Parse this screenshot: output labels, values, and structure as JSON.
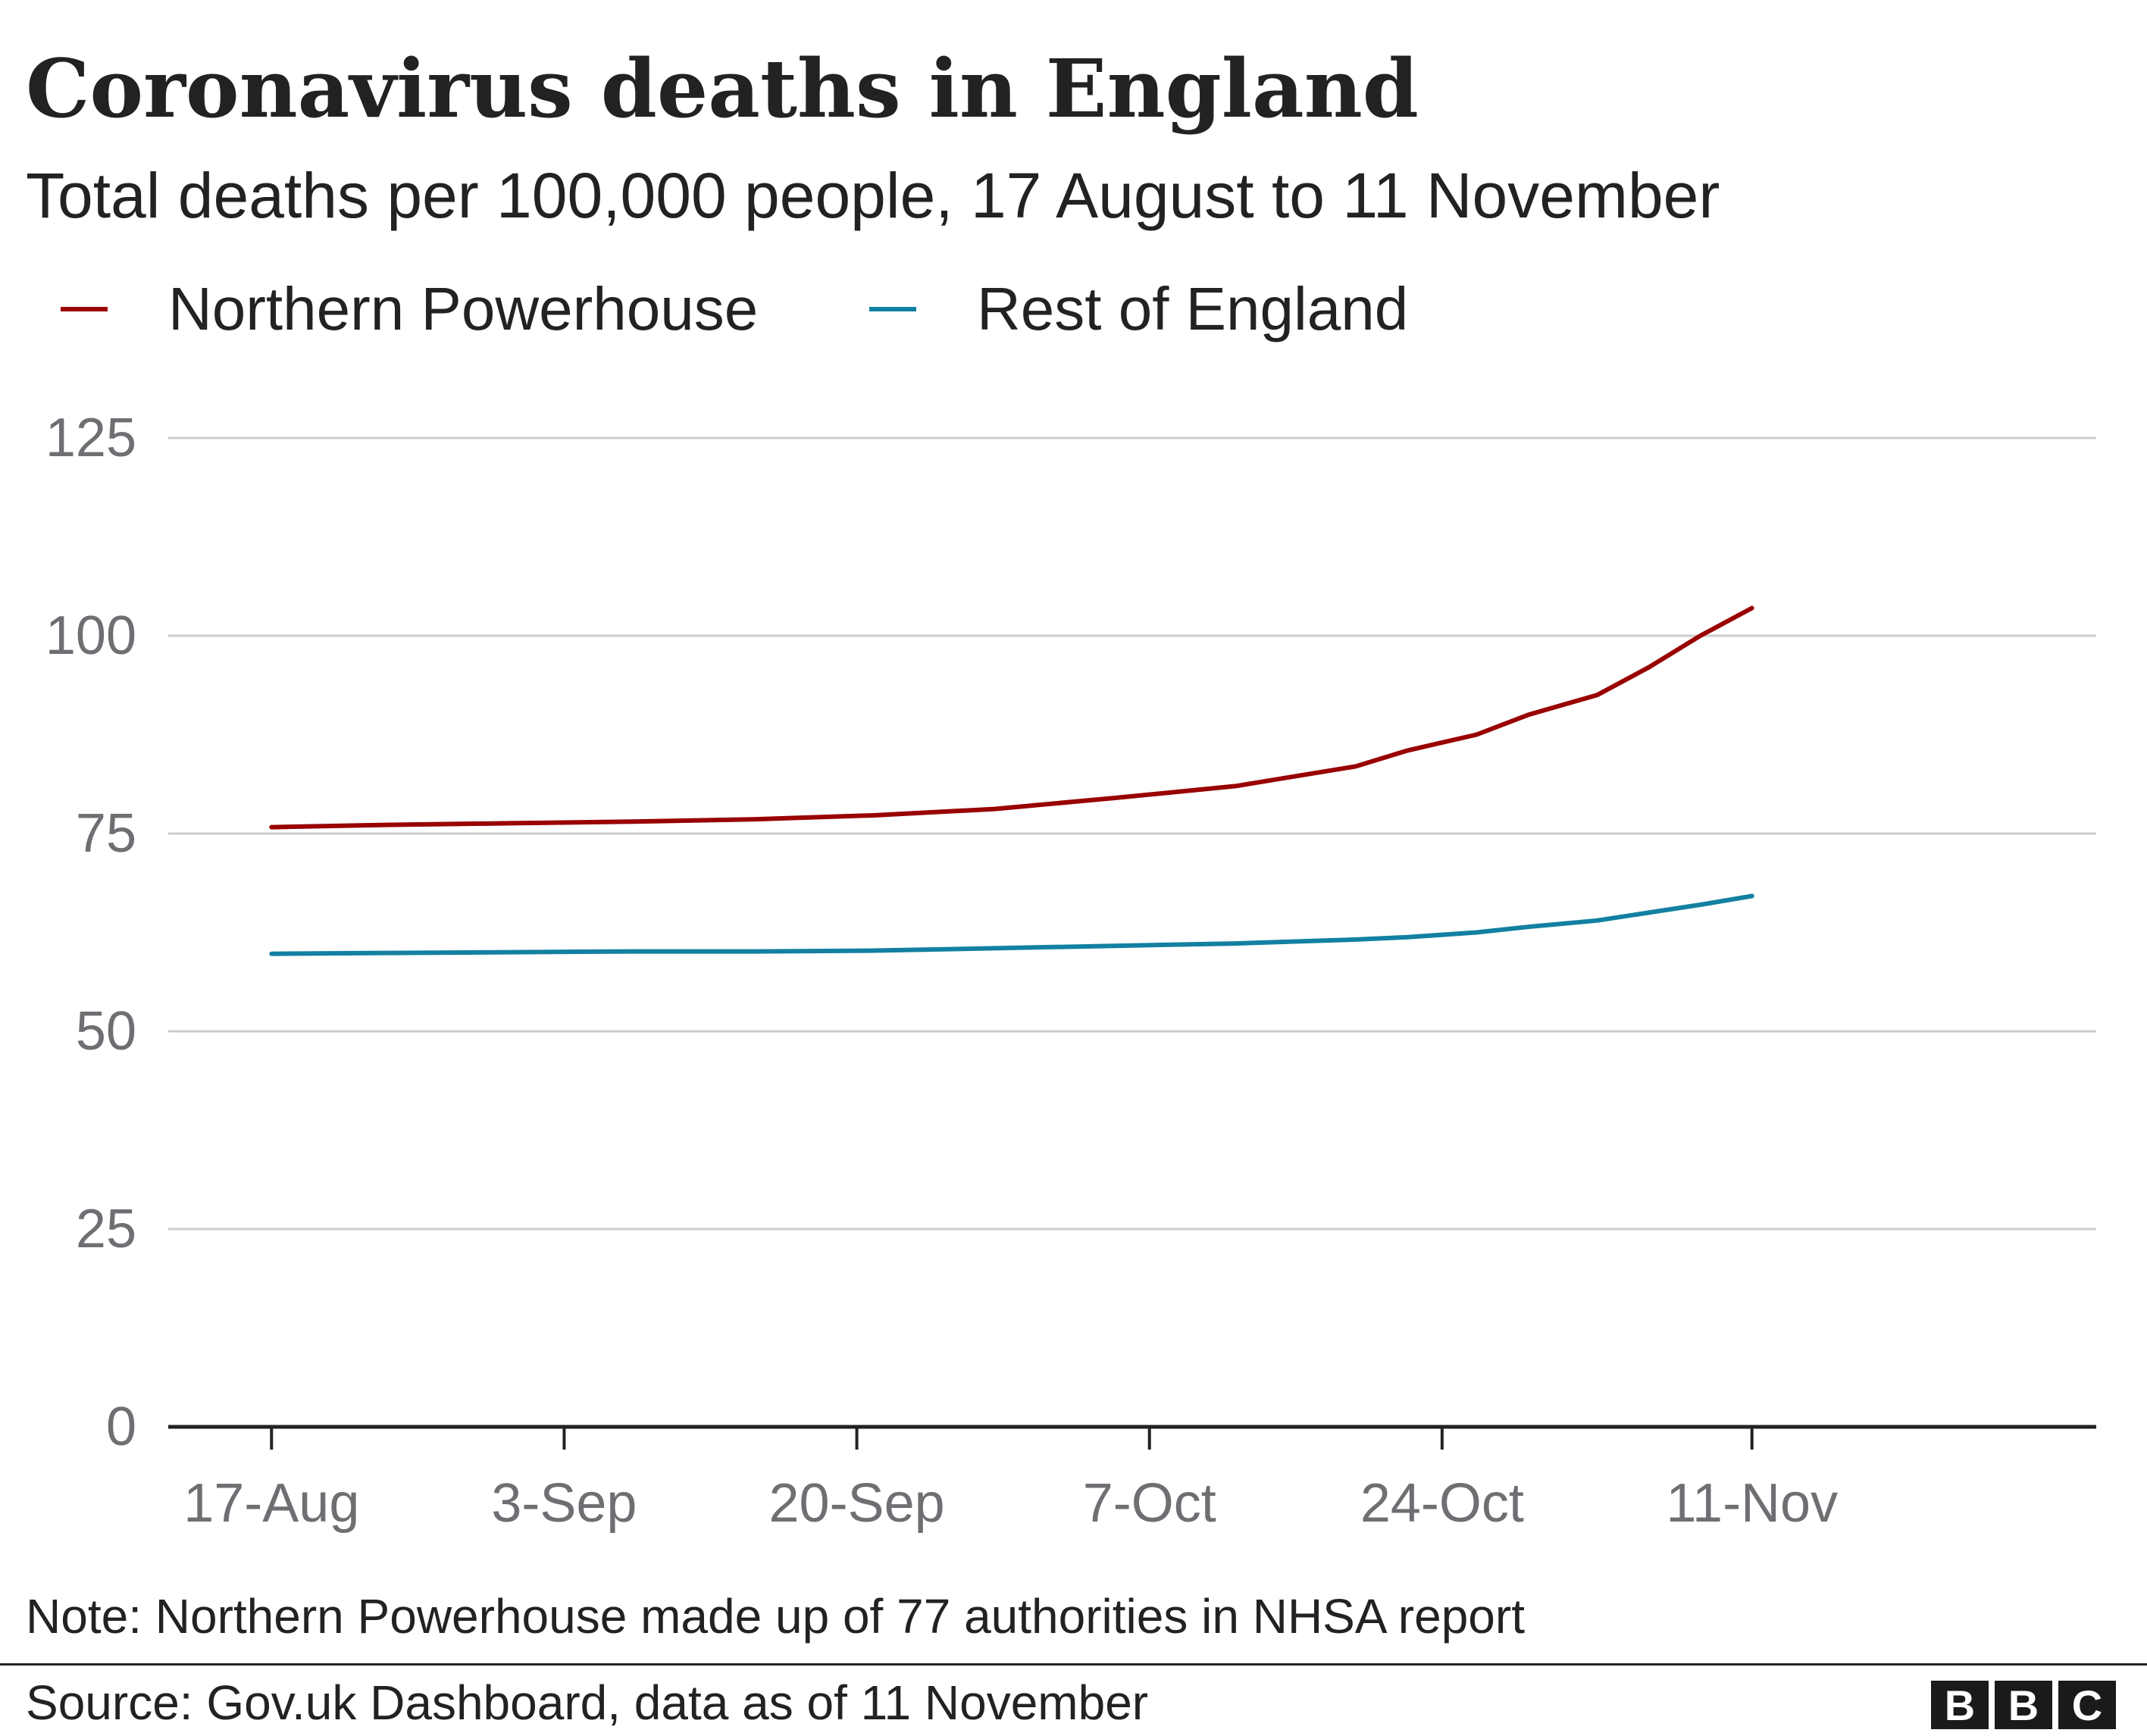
{
  "chart_data": {
    "type": "line",
    "title": "Coronavirus deaths in England",
    "subtitle": "Total deaths per 100,000 people, 17 August to 11 November",
    "x_start_date": "2020-08-17",
    "x": [
      "2020-08-17",
      "2020-08-24",
      "2020-08-31",
      "2020-09-07",
      "2020-09-14",
      "2020-09-21",
      "2020-09-28",
      "2020-10-05",
      "2020-10-12",
      "2020-10-19",
      "2020-10-22",
      "2020-10-26",
      "2020-10-29",
      "2020-11-02",
      "2020-11-05",
      "2020-11-08",
      "2020-11-11"
    ],
    "series": [
      {
        "name": "Northern Powerhouse",
        "color": "#990000",
        "values": [
          75.8,
          76.1,
          76.3,
          76.5,
          76.8,
          77.3,
          78.1,
          79.5,
          81.0,
          83.5,
          85.5,
          87.5,
          90.0,
          92.5,
          96.0,
          100.0,
          103.5
        ]
      },
      {
        "name": "Rest of England",
        "color": "#1380a1",
        "values": [
          59.8,
          59.9,
          60.0,
          60.1,
          60.1,
          60.2,
          60.5,
          60.8,
          61.1,
          61.6,
          61.9,
          62.5,
          63.2,
          64.0,
          65.0,
          66.0,
          67.1
        ]
      }
    ],
    "ylim": [
      0,
      125
    ],
    "yticks": [
      0,
      25,
      50,
      75,
      100,
      125
    ],
    "xticks": [
      "2020-08-17",
      "2020-09-03",
      "2020-09-20",
      "2020-10-07",
      "2020-10-24",
      "2020-11-11"
    ],
    "xtick_labels": [
      "17-Aug",
      "3-Sep",
      "20-Sep",
      "7-Oct",
      "24-Oct",
      "11-Nov"
    ],
    "xlim": [
      "2020-08-11",
      "2020-12-01"
    ],
    "grid": true,
    "legend_position": "top-left",
    "note": "Note: Northern Powerhouse made up of 77 authorities in NHSA report",
    "source": "Source: Gov.uk Dashboard, data as of 11 November"
  },
  "logo_letters": [
    "B",
    "B",
    "C"
  ],
  "colors": {
    "text": "#222222",
    "axis_text": "#6e6e73",
    "grid": "#cccccc",
    "axis": "#222222"
  }
}
